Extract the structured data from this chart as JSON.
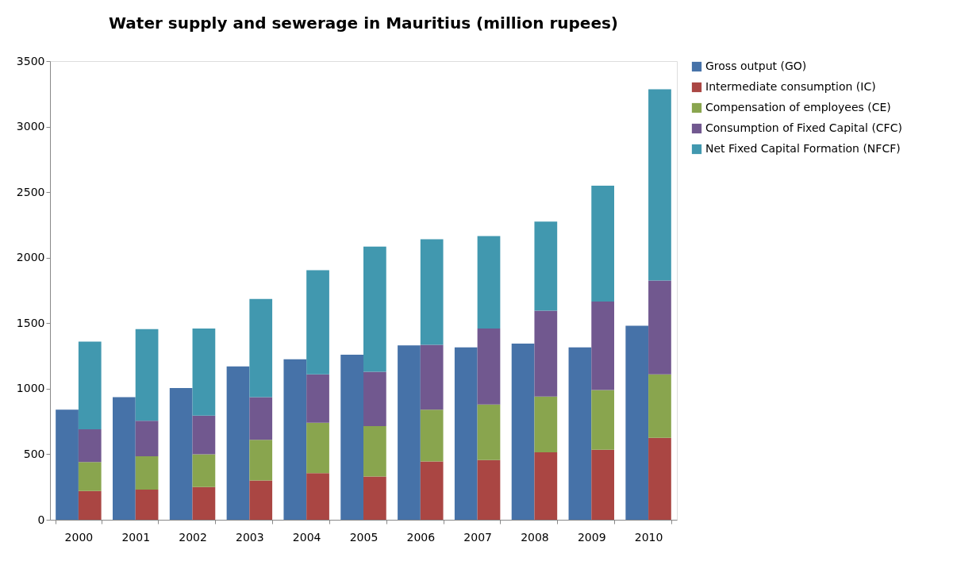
{
  "chart_data": {
    "type": "bar",
    "title": "Water supply and sewerage in Mauritius (million rupees)",
    "categories": [
      "2000",
      "2001",
      "2002",
      "2003",
      "2004",
      "2005",
      "2006",
      "2007",
      "2008",
      "2009",
      "2010"
    ],
    "series": [
      {
        "name": "Gross output  (GO)",
        "color": "#4672a8",
        "values": [
          840,
          935,
          1005,
          1170,
          1225,
          1260,
          1330,
          1315,
          1345,
          1315,
          1480
        ]
      },
      {
        "name": "Intermediate consumption (IC)",
        "color": "#aa4643",
        "base": [
          0,
          0,
          0,
          0,
          0,
          0,
          0,
          0,
          0,
          0,
          0
        ],
        "values": [
          220,
          230,
          250,
          300,
          355,
          330,
          445,
          455,
          515,
          535,
          625
        ]
      },
      {
        "name": "Compensation of employees  (CE)",
        "color": "#89a54e",
        "base": [
          220,
          230,
          250,
          300,
          355,
          330,
          445,
          455,
          515,
          535,
          625
        ],
        "values": [
          220,
          255,
          250,
          310,
          385,
          385,
          395,
          425,
          425,
          455,
          485
        ]
      },
      {
        "name": "Consumption of Fixed Capital (CFC)",
        "color": "#71588f",
        "base": [
          440,
          485,
          500,
          610,
          740,
          715,
          840,
          880,
          940,
          990,
          1110
        ],
        "values": [
          250,
          270,
          295,
          325,
          370,
          415,
          495,
          580,
          655,
          675,
          715
        ]
      },
      {
        "name": "Net Fixed Capital Formation (NFCF)",
        "color": "#4198af",
        "base": [
          690,
          755,
          795,
          935,
          1110,
          1130,
          1335,
          1460,
          1595,
          1665,
          1825
        ],
        "values": [
          670,
          700,
          665,
          750,
          795,
          955,
          805,
          705,
          680,
          885,
          1460
        ]
      }
    ],
    "ylim": [
      0,
      3500
    ],
    "yticks": [
      0,
      500,
      1000,
      1500,
      2000,
      2500,
      3000,
      3500
    ],
    "grid": false,
    "legend": "right"
  }
}
